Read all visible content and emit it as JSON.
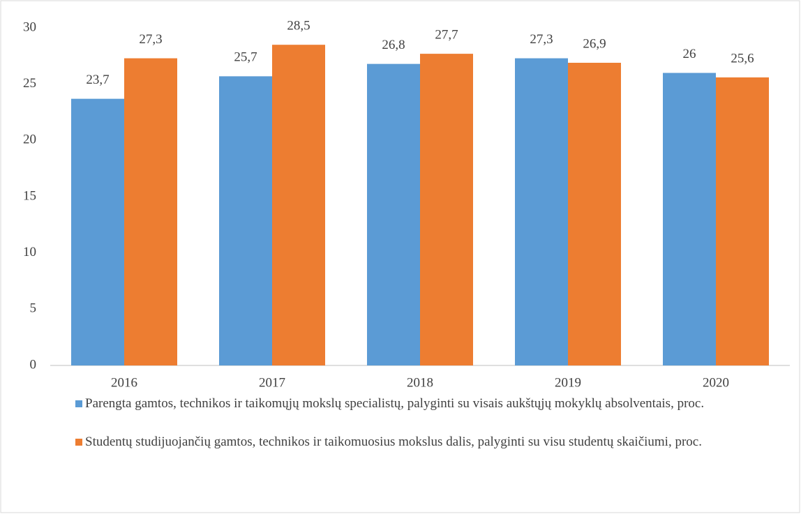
{
  "chart_data": {
    "type": "bar",
    "categories": [
      "2016",
      "2017",
      "2018",
      "2019",
      "2020"
    ],
    "series": [
      {
        "name": "Parengta gamtos, technikos ir taikomųjų mokslų specialistų, palyginti su visais aukštųjų mokyklų absolventais, proc.",
        "color": "#5b9bd5",
        "values": [
          23.7,
          25.7,
          26.8,
          27.3,
          26
        ],
        "value_labels": [
          "23,7",
          "25,7",
          "26,8",
          "27,3",
          "26"
        ]
      },
      {
        "name": "Studentų studijuojančių gamtos, technikos ir taikomuosius mokslus dalis, palyginti su visu studentų skaičiumi, proc.",
        "color": "#ed7d31",
        "values": [
          27.3,
          28.5,
          27.7,
          26.9,
          25.6
        ],
        "value_labels": [
          "27,3",
          "28,5",
          "27,7",
          "26,9",
          "25,6"
        ]
      }
    ],
    "ylim": [
      0,
      30
    ],
    "yticks": [
      0,
      5,
      10,
      15,
      20,
      25,
      30
    ],
    "grid": false,
    "legend": "bottom"
  }
}
